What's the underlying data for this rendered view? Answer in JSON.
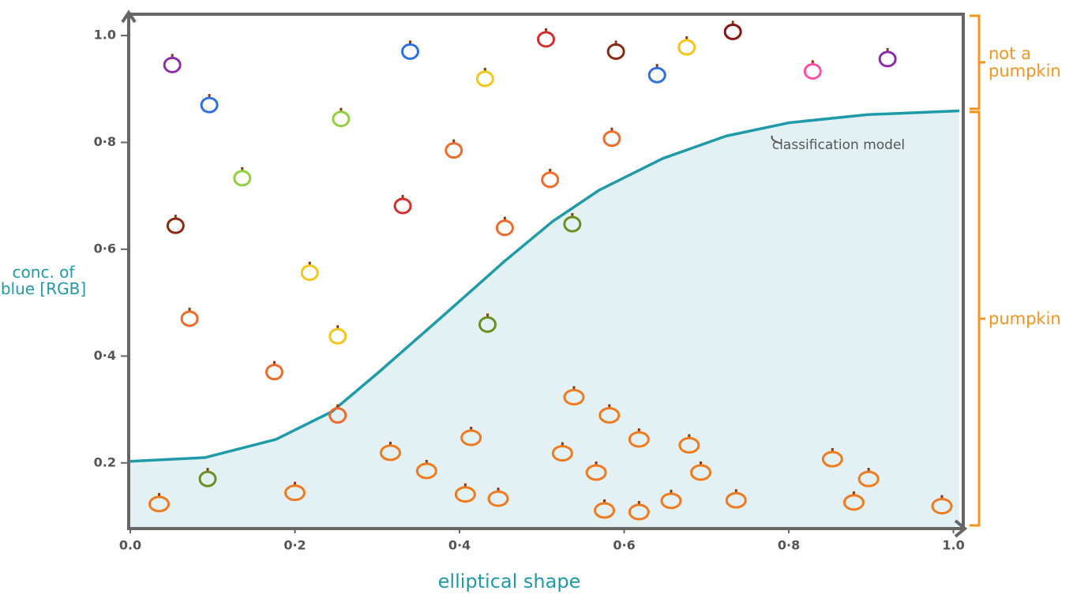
{
  "chart_data": {
    "type": "scatter",
    "x_label": "elliptical shape",
    "y_label": "conc. of blue [RGB]",
    "xlim": [
      0,
      1.01
    ],
    "ylim": [
      0.08,
      1.04
    ],
    "xticks": [
      {
        "value": 0,
        "label": "0.0"
      },
      {
        "value": 0.2,
        "label": "0·2"
      },
      {
        "value": 0.4,
        "label": "0·4"
      },
      {
        "value": 0.6,
        "label": "0·6"
      },
      {
        "value": 0.8,
        "label": "0·8"
      },
      {
        "value": 1.0,
        "label": "1.0"
      }
    ],
    "yticks": [
      {
        "value": 0.2,
        "label": "0.2"
      },
      {
        "value": 0.4,
        "label": "0·4"
      },
      {
        "value": 0.6,
        "label": "0·6"
      },
      {
        "value": 0.8,
        "label": "0·8"
      },
      {
        "value": 1.0,
        "label": "1.0"
      }
    ],
    "model": {
      "label": "classification model",
      "color": "#1e9aa8",
      "fill": "#e3f1f4",
      "x": [
        0,
        0.091,
        0.177,
        0.245,
        0.302,
        0.379,
        0.455,
        0.513,
        0.57,
        0.647,
        0.724,
        0.801,
        0.896,
        1.007
      ],
      "y": [
        0.203,
        0.21,
        0.244,
        0.296,
        0.37,
        0.474,
        0.578,
        0.652,
        0.711,
        0.77,
        0.812,
        0.837,
        0.852,
        0.859
      ]
    },
    "regions": [
      {
        "label": "not a pumpkin",
        "ylim": [
          0.86,
          1.04
        ],
        "color": "#f7941d"
      },
      {
        "label": "pumpkin",
        "ylim": [
          0.08,
          0.86
        ],
        "color": "#f7941d"
      }
    ],
    "pumpkins": {
      "color": "#f07a1e",
      "x": [
        0.035,
        0.2,
        0.316,
        0.36,
        0.414,
        0.407,
        0.447,
        0.525,
        0.539,
        0.566,
        0.582,
        0.618,
        0.576,
        0.618,
        0.657,
        0.679,
        0.693,
        0.736,
        0.853,
        0.897,
        0.879,
        0.986
      ],
      "y": [
        0.123,
        0.144,
        0.219,
        0.185,
        0.247,
        0.141,
        0.133,
        0.218,
        0.323,
        0.182,
        0.289,
        0.244,
        0.111,
        0.108,
        0.129,
        0.233,
        0.182,
        0.13,
        0.207,
        0.17,
        0.126,
        0.119
      ]
    },
    "other_items": {
      "x": [
        0.051,
        0.096,
        0.256,
        0.34,
        0.431,
        0.505,
        0.59,
        0.64,
        0.676,
        0.732,
        0.829,
        0.92,
        0.136,
        0.393,
        0.585,
        0.51,
        0.055,
        0.331,
        0.455,
        0.537,
        0.218,
        0.072,
        0.252,
        0.175,
        0.434,
        0.252,
        0.094
      ],
      "y": [
        0.945,
        0.87,
        0.844,
        0.97,
        0.919,
        0.993,
        0.97,
        0.926,
        0.978,
        1.007,
        0.933,
        0.956,
        0.733,
        0.785,
        0.807,
        0.73,
        0.644,
        0.681,
        0.64,
        0.647,
        0.556,
        0.47,
        0.437,
        0.37,
        0.459,
        0.289,
        0.17
      ],
      "colors": [
        "#8e2da8",
        "#2f6fe0",
        "#8fd13a",
        "#2f6fe0",
        "#f5c518",
        "#d62d2d",
        "#8b2a10",
        "#2f6fe0",
        "#f5c518",
        "#8b1010",
        "#ff4fa6",
        "#8e2da8",
        "#8fd13a",
        "#f06a2a",
        "#f06a2a",
        "#f06a2a",
        "#8b2a10",
        "#d62d2d",
        "#f06a2a",
        "#6b8e23",
        "#f5c518",
        "#f06a2a",
        "#f5c518",
        "#f06a2a",
        "#6b8e23",
        "#f06a2a",
        "#6b8e23"
      ]
    }
  }
}
